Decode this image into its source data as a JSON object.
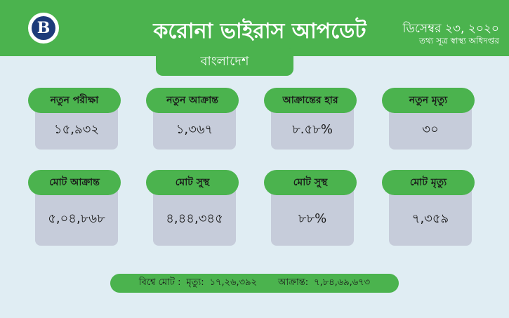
{
  "header": {
    "title": "করোনা ভাইরাস আপডেট",
    "date": "ডিসেম্বর ২৩, ২০২০",
    "source": "তথ্য সূত্র স্বাস্থ্য অধিদপ্তর",
    "logo_letter": "B",
    "logo_icon": "circle-logo-icon"
  },
  "country": "বাংলাদেশ",
  "stats_row1": [
    {
      "label": "নতুন পরীক্ষা",
      "value": "১৫,৯৩২"
    },
    {
      "label": "নতুন আক্রান্ত",
      "value": "১,৩৬৭"
    },
    {
      "label": "আক্রান্তের হার",
      "value": "৮.৫৮%"
    },
    {
      "label": "নতুন মৃত্যু",
      "value": "৩০"
    }
  ],
  "stats_row2": [
    {
      "label": "মোট আক্রান্ত",
      "value": "৫,০৪,৮৬৮"
    },
    {
      "label": "মোট সুস্থ",
      "value": "৪,৪৪,৩৪৫"
    },
    {
      "label": "মোট সুস্থ",
      "value": "৮৮%"
    },
    {
      "label": "মোট মৃত্যু",
      "value": "৭,৩৫৯"
    }
  ],
  "footer": {
    "prefix": "বিশ্বে মোট :",
    "deaths_label": "মৃত্যু:",
    "deaths_value": "১৭,২৬,৩৯২",
    "infected_label": "আক্রান্ত:",
    "infected_value": "৭,৮৪,৬৯,৬৭৩"
  },
  "colors": {
    "green": "#4bb34e",
    "background": "#e0edf3",
    "card": "#c6ccda",
    "logo": "#1d3b7a"
  }
}
